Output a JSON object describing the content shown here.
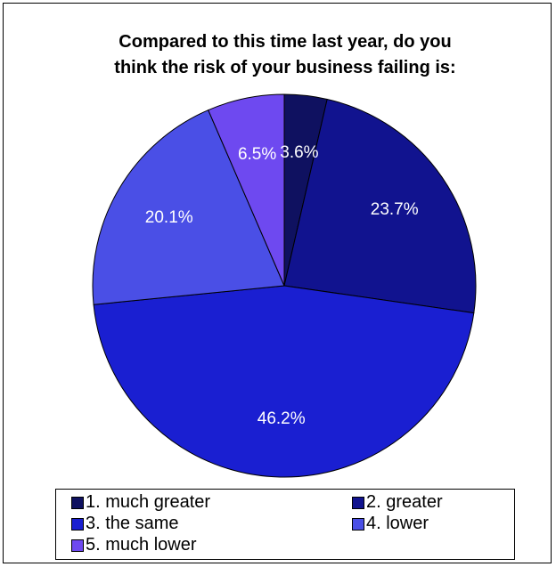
{
  "chart_data": {
    "type": "pie",
    "title_lines": [
      "Compared to this time last year, do you",
      "think the risk of your business failing is:"
    ],
    "slices": [
      {
        "name": "1. much greater",
        "value": 3.6,
        "label": "3.6%",
        "color": "#0f1160"
      },
      {
        "name": "2. greater",
        "value": 23.7,
        "label": "23.7%",
        "color": "#11138f"
      },
      {
        "name": "3. the same",
        "value": 46.2,
        "label": "46.2%",
        "color": "#1a1fd1"
      },
      {
        "name": "4. lower",
        "value": 20.1,
        "label": "20.1%",
        "color": "#4a4fe6"
      },
      {
        "name": "5. much lower",
        "value": 6.5,
        "label": "6.5%",
        "color": "#6e49f0"
      }
    ],
    "legend_position": "bottom",
    "label_color": "#ffffff",
    "edge_color": "#000000"
  }
}
